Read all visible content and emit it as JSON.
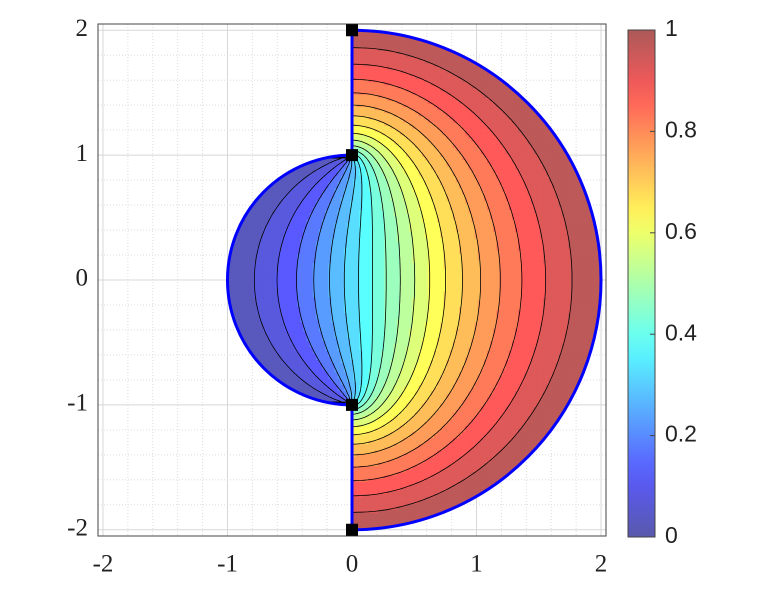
{
  "chart_data": {
    "type": "contour",
    "xlim": [
      -2.04,
      2.04
    ],
    "ylim": [
      -2.05,
      2.05
    ],
    "xticks": [
      -2,
      -1,
      0,
      1,
      2
    ],
    "yticks": [
      -2,
      -1,
      0,
      1,
      2
    ],
    "grid": true,
    "minor_grid": true,
    "domain": {
      "inner_radius": 1,
      "outer_radius": 2
    },
    "boundary_color": "#0000ff",
    "levels": [
      0.05,
      0.1,
      0.15,
      0.2,
      0.25,
      0.3,
      0.35,
      0.4,
      0.45,
      0.5,
      0.55,
      0.6,
      0.65,
      0.7,
      0.75,
      0.8,
      0.85,
      0.9,
      0.95
    ],
    "colormap": "jet",
    "alpha": 0.65,
    "clim": [
      0,
      1
    ],
    "colorbar_ticks": [
      0,
      0.2,
      0.4,
      0.6,
      0.8,
      1
    ],
    "markers": {
      "x": [
        0,
        0,
        0,
        0
      ],
      "y": [
        2,
        1,
        -1,
        -2
      ],
      "color": "#000000"
    }
  }
}
